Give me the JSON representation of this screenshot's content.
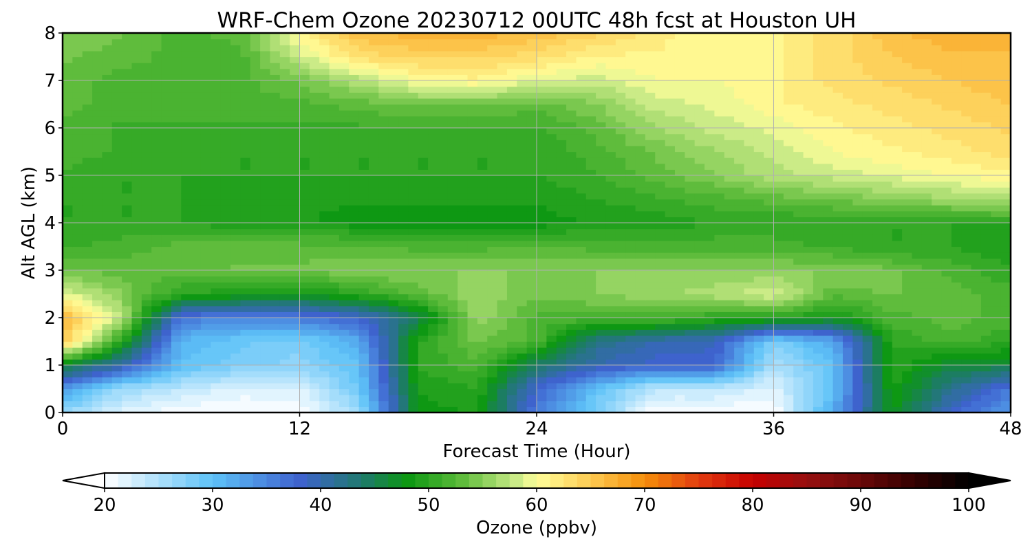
{
  "chart_data": {
    "type": "heatmap",
    "title": "WRF-Chem Ozone  20230712 00UTC 48h fcst at Houston UH",
    "xlabel": "Forecast Time (Hour)",
    "ylabel": "Alt AGL (km)",
    "xlim": [
      0,
      48
    ],
    "ylim": [
      0,
      8
    ],
    "x_ticks": [
      "0",
      "12",
      "24",
      "36",
      "48"
    ],
    "y_ticks": [
      "0",
      "1",
      "2",
      "3",
      "4",
      "5",
      "6",
      "7",
      "8"
    ],
    "grid": true,
    "x": [
      0,
      3,
      6,
      9,
      12,
      15,
      18,
      21,
      24,
      27,
      30,
      33,
      36,
      39,
      42,
      45,
      48
    ],
    "y": [
      0,
      0.5,
      1,
      1.5,
      2,
      2.5,
      3,
      3.5,
      4,
      4.5,
      5,
      5.5,
      6,
      6.5,
      7,
      7.5,
      8
    ],
    "values": [
      [
        26,
        22,
        20,
        20,
        20,
        26,
        48,
        49,
        36,
        28,
        20,
        20,
        20,
        32,
        48,
        38,
        33
      ],
      [
        34,
        26,
        24,
        22,
        22,
        29,
        49,
        50,
        38,
        30,
        24,
        24,
        22,
        30,
        49,
        42,
        36
      ],
      [
        47,
        40,
        30,
        28,
        27,
        30,
        50,
        52,
        44,
        40,
        38,
        38,
        25,
        30,
        50,
        46,
        46
      ],
      [
        65,
        50,
        31,
        29,
        28,
        32,
        50,
        54,
        52,
        42,
        40,
        39,
        28,
        32,
        50,
        52,
        50
      ],
      [
        67,
        57,
        36,
        35,
        36,
        38,
        45,
        56,
        52,
        52,
        52,
        50,
        50,
        48,
        52,
        53,
        52
      ],
      [
        59,
        55,
        50,
        49,
        48,
        50,
        53,
        56,
        54,
        55,
        56,
        57,
        59,
        53,
        54,
        53,
        52
      ],
      [
        54,
        53,
        53,
        54,
        54,
        55,
        55,
        55,
        55,
        55,
        55,
        55,
        55,
        55,
        54,
        52,
        50
      ],
      [
        51,
        52,
        53,
        53,
        53,
        53,
        52,
        52,
        53,
        52,
        52,
        52,
        52,
        51,
        50,
        50,
        49
      ],
      [
        50,
        50,
        50,
        49,
        49,
        48,
        48,
        48,
        48,
        49,
        49,
        50,
        50,
        50,
        50,
        50,
        50
      ],
      [
        50,
        50,
        50,
        49,
        49,
        49,
        49,
        49,
        49,
        50,
        51,
        52,
        53,
        54,
        55,
        56,
        57
      ],
      [
        51,
        50,
        50,
        50,
        50,
        50,
        50,
        50,
        50,
        51,
        53,
        55,
        57,
        58,
        59,
        60,
        61
      ],
      [
        52,
        51,
        51,
        50,
        50,
        50,
        50,
        50,
        50,
        52,
        54,
        56,
        58,
        60,
        61,
        62,
        63
      ],
      [
        52,
        51,
        51,
        51,
        51,
        51,
        51,
        51,
        51,
        53,
        56,
        58,
        59,
        61,
        62,
        63,
        64
      ],
      [
        53,
        52,
        52,
        52,
        52,
        53,
        54,
        54,
        53,
        55,
        58,
        59,
        61,
        62,
        63,
        64,
        65
      ],
      [
        53,
        52,
        52,
        52,
        54,
        57,
        60,
        61,
        59,
        58,
        60,
        60,
        61,
        63,
        64,
        65,
        66
      ],
      [
        54,
        53,
        52,
        52,
        58,
        63,
        64,
        64,
        63,
        61,
        61,
        60,
        61,
        63,
        65,
        66,
        66
      ],
      [
        55,
        54,
        52,
        53,
        61,
        66,
        67,
        67,
        66,
        64,
        62,
        60,
        61,
        63,
        66,
        67,
        67
      ]
    ],
    "colorbar": {
      "label": "Ozone  (ppbv)",
      "min": 20,
      "max": 100,
      "ticks": [
        "20",
        "30",
        "40",
        "50",
        "60",
        "70",
        "80",
        "90",
        "100"
      ],
      "extend": "both",
      "levels_per_10": 8,
      "color_stops": [
        [
          20,
          "#ffffff"
        ],
        [
          30,
          "#5dc2f8"
        ],
        [
          38,
          "#3f62cf"
        ],
        [
          44,
          "#1e7a6a"
        ],
        [
          48,
          "#0c9712"
        ],
        [
          53,
          "#5cbb3a"
        ],
        [
          58,
          "#c8ea86"
        ],
        [
          60,
          "#ffff9a"
        ],
        [
          65,
          "#fdca52"
        ],
        [
          70,
          "#f58e0a"
        ],
        [
          75,
          "#e23d10"
        ],
        [
          80,
          "#c60000"
        ],
        [
          85,
          "#961010"
        ],
        [
          90,
          "#6a0808"
        ],
        [
          95,
          "#330000"
        ],
        [
          100,
          "#000000"
        ]
      ]
    }
  }
}
